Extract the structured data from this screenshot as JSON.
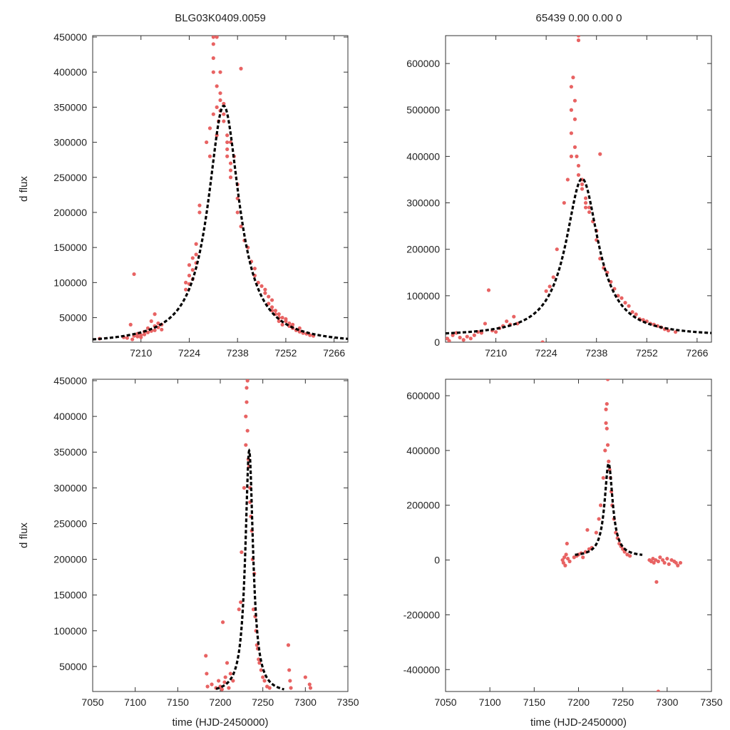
{
  "figure": {
    "left_title": "BLG03K0409.0059",
    "right_title": "65439  0.00  0.00  0",
    "point_color": "#e86363",
    "fit_color": "#000000"
  },
  "chart_data": [
    {
      "type": "scatter",
      "panel": "top-left",
      "title": "BLG03K0409.0059",
      "xlabel": "",
      "ylabel": "d flux",
      "xlim": [
        7196,
        7270
      ],
      "ylim": [
        15000,
        452000
      ],
      "xticks": [
        7210,
        7224,
        7238,
        7252,
        7266
      ],
      "yticks": [
        50000,
        100000,
        150000,
        200000,
        250000,
        300000,
        350000,
        400000,
        450000
      ],
      "fit": {
        "t0": 7234,
        "peak": 352000,
        "tau": 5.5,
        "base": 12000
      },
      "points": [
        [
          7198,
          20000
        ],
        [
          7205,
          22000
        ],
        [
          7206,
          21000
        ],
        [
          7207,
          40000
        ],
        [
          7207.5,
          19000
        ],
        [
          7208,
          24000
        ],
        [
          7208,
          112000
        ],
        [
          7209,
          23000
        ],
        [
          7209,
          27000
        ],
        [
          7210,
          25000
        ],
        [
          7210,
          22000
        ],
        [
          7211,
          30000
        ],
        [
          7211,
          26000
        ],
        [
          7212,
          29000
        ],
        [
          7212,
          35000
        ],
        [
          7213,
          31000
        ],
        [
          7213,
          45000
        ],
        [
          7214,
          38000
        ],
        [
          7214,
          32000
        ],
        [
          7214,
          55000
        ],
        [
          7215,
          36000
        ],
        [
          7215,
          42000
        ],
        [
          7216,
          40000
        ],
        [
          7216,
          33000
        ],
        [
          7223,
          90000
        ],
        [
          7223,
          100000
        ],
        [
          7224,
          110000
        ],
        [
          7224,
          125000
        ],
        [
          7224,
          98000
        ],
        [
          7225,
          118000
        ],
        [
          7225,
          135000
        ],
        [
          7225,
          105000
        ],
        [
          7226,
          140000
        ],
        [
          7226,
          128000
        ],
        [
          7226,
          155000
        ],
        [
          7227,
          200000
        ],
        [
          7227,
          210000
        ],
        [
          7229,
          300000
        ],
        [
          7230,
          320000
        ],
        [
          7230,
          280000
        ],
        [
          7231,
          340000
        ],
        [
          7231,
          420000
        ],
        [
          7231,
          440000
        ],
        [
          7231,
          450000
        ],
        [
          7231,
          400000
        ],
        [
          7232,
          380000
        ],
        [
          7232,
          350000
        ],
        [
          7232,
          310000
        ],
        [
          7232,
          450000
        ],
        [
          7232.5,
          330000
        ],
        [
          7233,
          360000
        ],
        [
          7233,
          370000
        ],
        [
          7233,
          345000
        ],
        [
          7233,
          400000
        ],
        [
          7234,
          355000
        ],
        [
          7234,
          340000
        ],
        [
          7234,
          330000
        ],
        [
          7235,
          300000
        ],
        [
          7235,
          290000
        ],
        [
          7235,
          310000
        ],
        [
          7235,
          280000
        ],
        [
          7236,
          300000
        ],
        [
          7236,
          270000
        ],
        [
          7236,
          260000
        ],
        [
          7236,
          250000
        ],
        [
          7237,
          280000
        ],
        [
          7238,
          240000
        ],
        [
          7238,
          220000
        ],
        [
          7238,
          200000
        ],
        [
          7239,
          180000
        ],
        [
          7239,
          405000
        ],
        [
          7240,
          160000
        ],
        [
          7241,
          150000
        ],
        [
          7242,
          130000
        ],
        [
          7243,
          120000
        ],
        [
          7243,
          110000
        ],
        [
          7244,
          100000
        ],
        [
          7245,
          95000
        ],
        [
          7246,
          90000
        ],
        [
          7246,
          85000
        ],
        [
          7247,
          80000
        ],
        [
          7247,
          70000
        ],
        [
          7248,
          75000
        ],
        [
          7248,
          65000
        ],
        [
          7248,
          60000
        ],
        [
          7249,
          60000
        ],
        [
          7249,
          55000
        ],
        [
          7250,
          50000
        ],
        [
          7250,
          45000
        ],
        [
          7250,
          55000
        ],
        [
          7251,
          50000
        ],
        [
          7251,
          40000
        ],
        [
          7252,
          45000
        ],
        [
          7252,
          48000
        ],
        [
          7253,
          42000
        ],
        [
          7253,
          38000
        ],
        [
          7254,
          40000
        ],
        [
          7254,
          35000
        ],
        [
          7255,
          32000
        ],
        [
          7256,
          30000
        ],
        [
          7256,
          35000
        ],
        [
          7257,
          28000
        ],
        [
          7258,
          27000
        ],
        [
          7259,
          25000
        ],
        [
          7260,
          24000
        ]
      ]
    },
    {
      "type": "scatter",
      "panel": "top-right",
      "title": "65439  0.00  0.00  0",
      "xlabel": "",
      "ylabel": "",
      "xlim": [
        7196,
        7270
      ],
      "ylim": [
        0,
        660000
      ],
      "xticks": [
        7210,
        7224,
        7238,
        7252,
        7266
      ],
      "yticks": [
        0,
        100000,
        200000,
        300000,
        400000,
        500000,
        600000
      ],
      "fit": {
        "t0": 7234,
        "peak": 352000,
        "tau": 5.5,
        "base": 12000
      },
      "points": [
        [
          7196.5,
          8000
        ],
        [
          7197,
          3000
        ],
        [
          7198,
          15000
        ],
        [
          7199,
          20000
        ],
        [
          7200,
          10000
        ],
        [
          7201,
          5000
        ],
        [
          7202,
          12000
        ],
        [
          7203,
          8000
        ],
        [
          7204,
          15000
        ],
        [
          7205,
          22000
        ],
        [
          7206,
          20000
        ],
        [
          7207,
          40000
        ],
        [
          7208,
          112000
        ],
        [
          7209,
          25000
        ],
        [
          7210,
          22000
        ],
        [
          7211,
          30000
        ],
        [
          7212,
          35000
        ],
        [
          7213,
          45000
        ],
        [
          7214,
          38000
        ],
        [
          7215,
          55000
        ],
        [
          7216,
          40000
        ],
        [
          7223,
          0
        ],
        [
          7224,
          110000
        ],
        [
          7225,
          120000
        ],
        [
          7226,
          140000
        ],
        [
          7227,
          200000
        ],
        [
          7229,
          300000
        ],
        [
          7230,
          350000
        ],
        [
          7231,
          400000
        ],
        [
          7231,
          450000
        ],
        [
          7231,
          500000
        ],
        [
          7231,
          550000
        ],
        [
          7231.5,
          570000
        ],
        [
          7232,
          520000
        ],
        [
          7232,
          480000
        ],
        [
          7232,
          420000
        ],
        [
          7232.5,
          400000
        ],
        [
          7233,
          380000
        ],
        [
          7233,
          360000
        ],
        [
          7233,
          660000
        ],
        [
          7233,
          650000
        ],
        [
          7234,
          350000
        ],
        [
          7234,
          340000
        ],
        [
          7234,
          330000
        ],
        [
          7235,
          310000
        ],
        [
          7235,
          300000
        ],
        [
          7235,
          290000
        ],
        [
          7236,
          290000
        ],
        [
          7236,
          280000
        ],
        [
          7237,
          260000
        ],
        [
          7238,
          240000
        ],
        [
          7238,
          220000
        ],
        [
          7239,
          405000
        ],
        [
          7239,
          180000
        ],
        [
          7240,
          160000
        ],
        [
          7241,
          150000
        ],
        [
          7242,
          130000
        ],
        [
          7243,
          115000
        ],
        [
          7244,
          100000
        ],
        [
          7245,
          95000
        ],
        [
          7246,
          85000
        ],
        [
          7247,
          78000
        ],
        [
          7248,
          65000
        ],
        [
          7249,
          60000
        ],
        [
          7250,
          50000
        ],
        [
          7251,
          48000
        ],
        [
          7252,
          45000
        ],
        [
          7253,
          40000
        ],
        [
          7254,
          38000
        ],
        [
          7255,
          35000
        ],
        [
          7256,
          32000
        ],
        [
          7257,
          28000
        ],
        [
          7258,
          25000
        ],
        [
          7260,
          22000
        ]
      ]
    },
    {
      "type": "scatter",
      "panel": "bottom-left",
      "title": "",
      "xlabel": "time (HJD-2450000)",
      "ylabel": "d flux",
      "xlim": [
        7050,
        7350
      ],
      "ylim": [
        15000,
        452000
      ],
      "xticks": [
        7050,
        7100,
        7150,
        7200,
        7250,
        7300,
        7350
      ],
      "yticks": [
        50000,
        100000,
        150000,
        200000,
        250000,
        300000,
        350000,
        400000,
        450000
      ],
      "fit": {
        "t0": 7234,
        "peak": 352000,
        "tau": 5.5,
        "base": 12000
      },
      "points": [
        [
          7183,
          65000
        ],
        [
          7184,
          40000
        ],
        [
          7185,
          22000
        ],
        [
          7190,
          25000
        ],
        [
          7195,
          20000
        ],
        [
          7198,
          30000
        ],
        [
          7200,
          22000
        ],
        [
          7202,
          18000
        ],
        [
          7203,
          112000
        ],
        [
          7205,
          28000
        ],
        [
          7206,
          35000
        ],
        [
          7208,
          55000
        ],
        [
          7210,
          20000
        ],
        [
          7212,
          40000
        ],
        [
          7215,
          30000
        ],
        [
          7222,
          130000
        ],
        [
          7224,
          140000
        ],
        [
          7225,
          210000
        ],
        [
          7228,
          300000
        ],
        [
          7230,
          360000
        ],
        [
          7230,
          400000
        ],
        [
          7231,
          420000
        ],
        [
          7231,
          440000
        ],
        [
          7232,
          450000
        ],
        [
          7232,
          380000
        ],
        [
          7233,
          340000
        ],
        [
          7234,
          330000
        ],
        [
          7235,
          300000
        ],
        [
          7235,
          280000
        ],
        [
          7236,
          260000
        ],
        [
          7237,
          240000
        ],
        [
          7238,
          200000
        ],
        [
          7239,
          130000
        ],
        [
          7240,
          180000
        ],
        [
          7241,
          120000
        ],
        [
          7242,
          100000
        ],
        [
          7243,
          80000
        ],
        [
          7244,
          75000
        ],
        [
          7245,
          60000
        ],
        [
          7246,
          55000
        ],
        [
          7248,
          45000
        ],
        [
          7250,
          35000
        ],
        [
          7252,
          30000
        ],
        [
          7255,
          22000
        ],
        [
          7258,
          20000
        ],
        [
          7280,
          80000
        ],
        [
          7281,
          45000
        ],
        [
          7282,
          30000
        ],
        [
          7283,
          20000
        ],
        [
          7300,
          35000
        ],
        [
          7305,
          25000
        ],
        [
          7306,
          20000
        ]
      ]
    },
    {
      "type": "scatter",
      "panel": "bottom-right",
      "title": "",
      "xlabel": "time (HJD-2450000)",
      "ylabel": "",
      "xlim": [
        7050,
        7350
      ],
      "ylim": [
        -480000,
        660000
      ],
      "xticks": [
        7050,
        7100,
        7150,
        7200,
        7250,
        7300,
        7350
      ],
      "yticks": [
        -400000,
        -200000,
        0,
        200000,
        400000,
        600000
      ],
      "fit": {
        "t0": 7234,
        "peak": 352000,
        "tau": 5.5,
        "base": 12000
      },
      "points": [
        [
          7182,
          0
        ],
        [
          7183,
          -10000
        ],
        [
          7184,
          10000
        ],
        [
          7185,
          -20000
        ],
        [
          7186,
          20000
        ],
        [
          7187,
          60000
        ],
        [
          7188,
          5000
        ],
        [
          7190,
          -5000
        ],
        [
          7195,
          10000
        ],
        [
          7198,
          15000
        ],
        [
          7200,
          20000
        ],
        [
          7203,
          25000
        ],
        [
          7205,
          10000
        ],
        [
          7208,
          30000
        ],
        [
          7210,
          110000
        ],
        [
          7212,
          40000
        ],
        [
          7215,
          45000
        ],
        [
          7220,
          100000
        ],
        [
          7223,
          150000
        ],
        [
          7225,
          200000
        ],
        [
          7228,
          300000
        ],
        [
          7230,
          400000
        ],
        [
          7231,
          500000
        ],
        [
          7231,
          550000
        ],
        [
          7232,
          570000
        ],
        [
          7232,
          480000
        ],
        [
          7233,
          660000
        ],
        [
          7233,
          420000
        ],
        [
          7234,
          360000
        ],
        [
          7235,
          330000
        ],
        [
          7236,
          300000
        ],
        [
          7237,
          250000
        ],
        [
          7238,
          200000
        ],
        [
          7240,
          150000
        ],
        [
          7242,
          100000
        ],
        [
          7244,
          80000
        ],
        [
          7246,
          60000
        ],
        [
          7248,
          50000
        ],
        [
          7250,
          40000
        ],
        [
          7252,
          30000
        ],
        [
          7255,
          20000
        ],
        [
          7258,
          15000
        ],
        [
          7280,
          0
        ],
        [
          7282,
          -5000
        ],
        [
          7284,
          5000
        ],
        [
          7285,
          -10000
        ],
        [
          7287,
          0
        ],
        [
          7288,
          -80000
        ],
        [
          7290,
          -5000
        ],
        [
          7292,
          10000
        ],
        [
          7295,
          0
        ],
        [
          7297,
          -10000
        ],
        [
          7300,
          5000
        ],
        [
          7302,
          -15000
        ],
        [
          7305,
          0
        ],
        [
          7308,
          -5000
        ],
        [
          7310,
          -10000
        ],
        [
          7312,
          -20000
        ],
        [
          7315,
          -10000
        ],
        [
          7290,
          -480000
        ]
      ]
    }
  ]
}
